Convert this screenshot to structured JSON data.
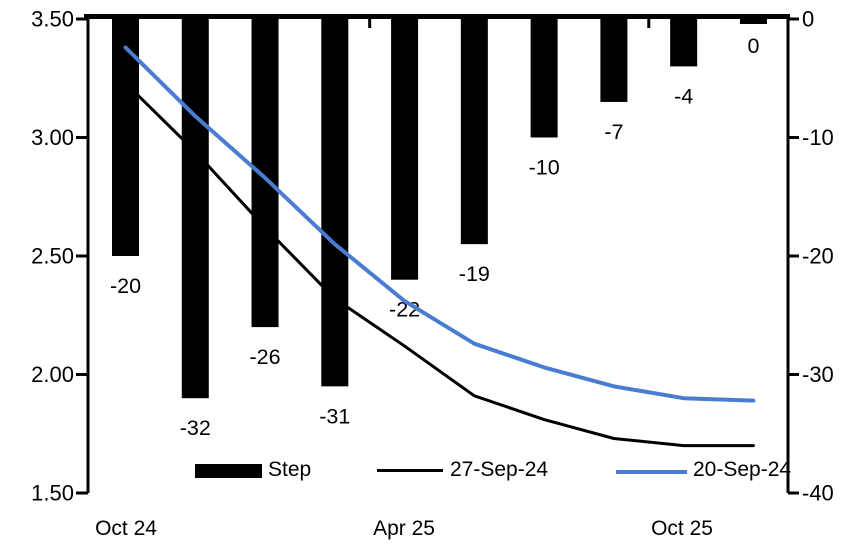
{
  "chart_data": {
    "type": "combo-bar-line",
    "title": "",
    "x_count": 10,
    "x_tick_labels": [
      {
        "index": 0,
        "label": "Oct 24"
      },
      {
        "index": 4,
        "label": "Apr 25"
      },
      {
        "index": 8,
        "label": "Oct 25"
      }
    ],
    "left_axis": {
      "tick_labels": [
        "3.50",
        "3.00",
        "2.50",
        "2.00",
        "1.50"
      ],
      "min": 1.5,
      "max": 3.5
    },
    "right_axis": {
      "tick_labels": [
        "0",
        "-10",
        "-20",
        "-30",
        "-40"
      ],
      "min": -40,
      "max": 0
    },
    "grid": "off",
    "legend_position": "bottom",
    "bar_series": {
      "name": "Step",
      "axis": "right",
      "color": "#000000",
      "values": [
        -20,
        -32,
        -26,
        -31,
        -22,
        -19,
        -10,
        -7,
        -4,
        0
      ],
      "data_labels": [
        "-20",
        "-32",
        "-26",
        "-31",
        "-22",
        "-19",
        "-10",
        "-7",
        "-4",
        "0"
      ]
    },
    "line_series": [
      {
        "name": "27-Sep-24",
        "axis": "left",
        "color": "#000000",
        "stroke_width": 3,
        "values": [
          3.23,
          2.94,
          2.62,
          2.32,
          2.12,
          1.91,
          1.81,
          1.73,
          1.7,
          1.7
        ]
      },
      {
        "name": "20-Sep-24",
        "axis": "left",
        "color": "#4A7CD2",
        "stroke_width": 4,
        "values": [
          3.38,
          3.09,
          2.83,
          2.55,
          2.31,
          2.13,
          2.03,
          1.95,
          1.9,
          1.89
        ]
      }
    ]
  },
  "legend": {
    "items": [
      {
        "label": "Step",
        "swatch": "filled-bar",
        "color": "#000000"
      },
      {
        "label": "27-Sep-24",
        "swatch": "line",
        "color": "#000000"
      },
      {
        "label": "20-Sep-24",
        "swatch": "line",
        "color": "#4A7CD2"
      }
    ]
  },
  "colors": {
    "background": "#ffffff",
    "text": "#000000",
    "accent_blue": "#4A7CD2"
  }
}
